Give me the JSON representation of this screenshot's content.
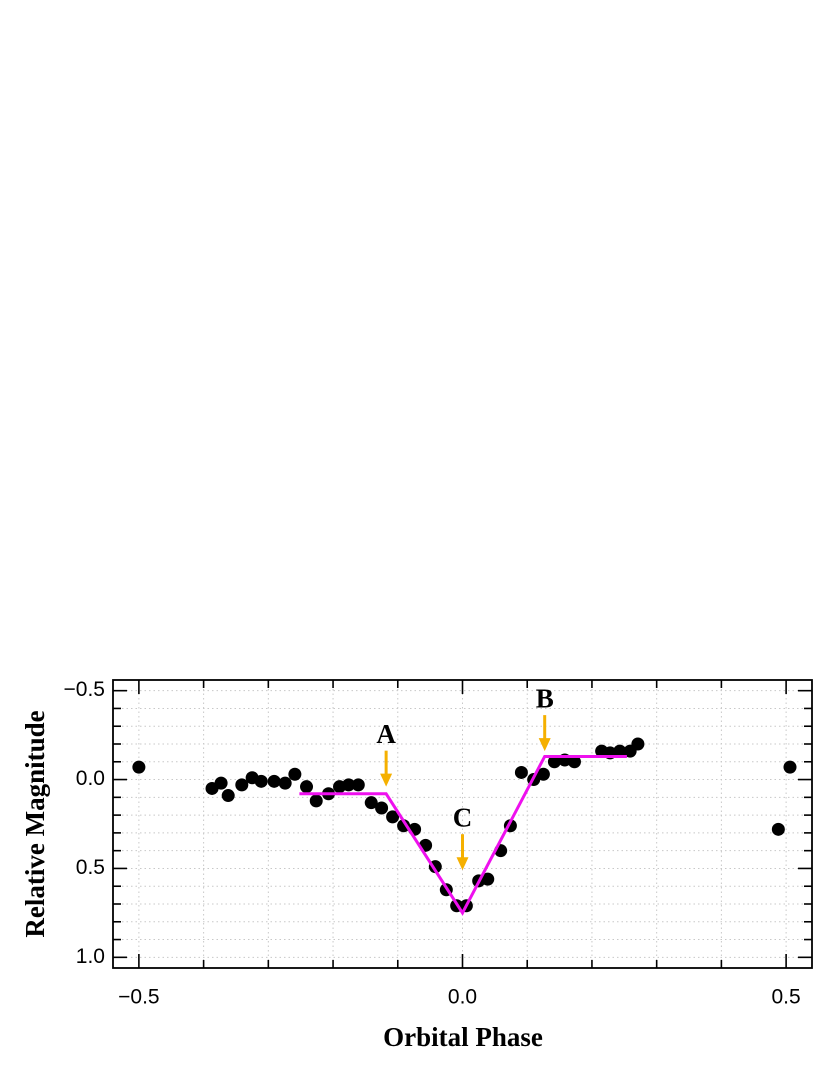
{
  "chart_data": {
    "type": "scatter",
    "xlabel": "Orbital Phase",
    "ylabel": "Relative Magnitude",
    "xlim": [
      -0.54,
      0.54
    ],
    "ylim": [
      -0.56,
      1.06
    ],
    "y_inverted": true,
    "xticks": [
      {
        "value": -0.5,
        "label": "−0.5"
      },
      {
        "value": 0,
        "label": "0.0"
      },
      {
        "value": 0.5,
        "label": "0.5"
      }
    ],
    "yticks": [
      {
        "value": -0.5,
        "label": "−0.5"
      },
      {
        "value": 0,
        "label": "0.0"
      },
      {
        "value": 0.5,
        "label": "0.5"
      },
      {
        "value": 1,
        "label": "1.0"
      }
    ],
    "xminorticks": [
      -0.4,
      -0.3,
      -0.2,
      -0.1,
      0.1,
      0.2,
      0.3,
      0.4
    ],
    "yminorticks": [
      -0.4,
      -0.3,
      -0.2,
      -0.1,
      0.1,
      0.2,
      0.3,
      0.4,
      0.6,
      0.7,
      0.8,
      0.9
    ],
    "grid": true,
    "series": [
      {
        "color": "#000000",
        "x": [
          -0.5,
          -0.387,
          -0.373,
          -0.362,
          -0.341,
          -0.325,
          -0.311,
          -0.291,
          -0.274,
          -0.259,
          -0.241,
          -0.226,
          -0.207,
          -0.19,
          -0.176,
          -0.161,
          -0.141,
          -0.125,
          -0.108,
          -0.091,
          -0.074,
          -0.057,
          -0.042,
          -0.025,
          -0.009,
          0.006,
          0.025,
          0.039,
          0.059,
          0.074,
          0.091,
          0.11,
          0.125,
          0.142,
          0.158,
          0.173,
          0.215,
          0.228,
          0.243,
          0.259,
          0.271,
          0.488,
          0.506
        ],
        "values": [
          -0.07,
          0.05,
          0.02,
          0.09,
          0.03,
          -0.01,
          0.01,
          0.01,
          0.02,
          -0.03,
          0.04,
          0.12,
          0.08,
          0.04,
          0.03,
          0.03,
          0.13,
          0.16,
          0.21,
          0.26,
          0.28,
          0.37,
          0.49,
          0.62,
          0.71,
          0.71,
          0.57,
          0.56,
          0.4,
          0.26,
          -0.04,
          0,
          -0.03,
          -0.1,
          -0.11,
          -0.1,
          -0.16,
          -0.15,
          -0.16,
          -0.16,
          -0.2,
          0.28,
          -0.07
        ]
      },
      {
        "type": "line",
        "color": "#ee10ee",
        "x": [
          -0.252,
          -0.118,
          0,
          0.127,
          0.254
        ],
        "values": [
          0.08,
          0.08,
          0.75,
          -0.13,
          -0.13
        ]
      }
    ],
    "annotations": [
      {
        "text": "A",
        "x": -0.118,
        "y": 0.04
      },
      {
        "text": "C",
        "x": 0,
        "y": 0.51
      },
      {
        "text": "B",
        "x": 0.127,
        "y": -0.16
      }
    ],
    "annotation_color": "#f5b000"
  }
}
